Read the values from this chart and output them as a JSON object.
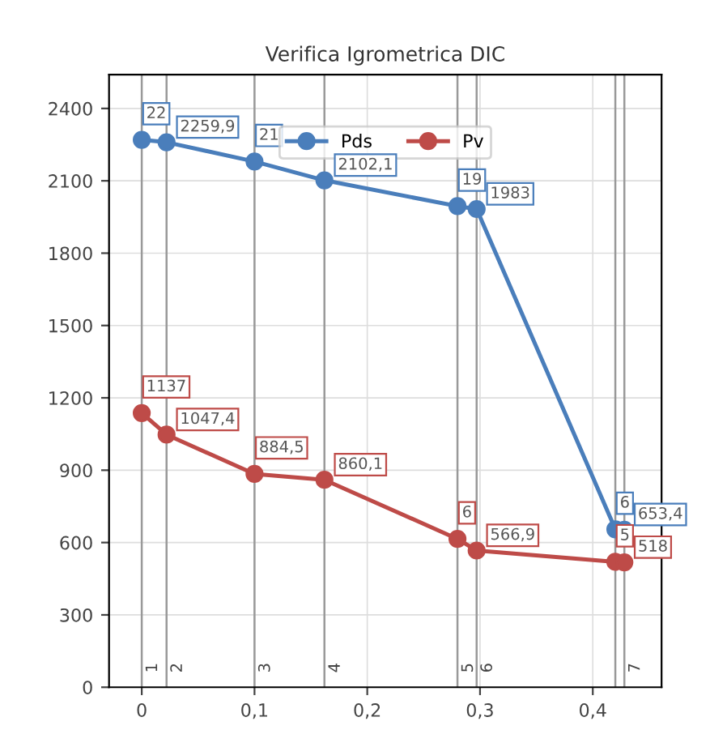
{
  "chart_data": {
    "type": "line",
    "title": "Verifica Igrometrica DIC",
    "x": [
      0,
      0.022,
      0.1,
      0.162,
      0.28,
      0.297,
      0.42,
      0.428
    ],
    "series": [
      {
        "name": "Pds",
        "color": "#4a7ebb",
        "values": [
          2270,
          2259.9,
          2180,
          2102.1,
          1995,
          1983,
          655,
          653.4
        ],
        "value_labels": [
          null,
          "2259,9",
          null,
          "2102,1",
          null,
          "1983",
          null,
          "653,4"
        ]
      },
      {
        "name": "Pv",
        "color": "#be4b48",
        "values": [
          1137,
          1047.4,
          884.5,
          860.1,
          615,
          566.9,
          520,
          518
        ],
        "value_labels": [
          "1137",
          "1047,4",
          "884,5",
          "860,1",
          null,
          "566,9",
          null,
          "518"
        ]
      }
    ],
    "annotations": [
      {
        "text": "22",
        "x": 0,
        "y": 2270
      },
      {
        "text": "21",
        "x": 0.1,
        "y": 2180
      },
      {
        "text": "19",
        "x": 0.28,
        "y": 1995
      },
      {
        "text": "6",
        "x": 0.42,
        "y": 655
      },
      {
        "text": "6",
        "x": 0.28,
        "y": 615
      },
      {
        "text": "5",
        "x": 0.42,
        "y": 520
      },
      {
        "text": "1",
        "x": 0,
        "y": 0
      },
      {
        "text": "2",
        "x": 0.022,
        "y": 0
      },
      {
        "text": "3",
        "x": 0.1,
        "y": 0
      },
      {
        "text": "4",
        "x": 0.162,
        "y": 0
      },
      {
        "text": "5",
        "x": 0.28,
        "y": 0
      },
      {
        "text": "6",
        "x": 0.297,
        "y": 0
      },
      {
        "text": "7",
        "x": 0.428,
        "y": 0
      }
    ],
    "xlim": [
      -0.029,
      0.461
    ],
    "ylim": [
      0,
      2540
    ],
    "xticks": [
      0,
      {
        "value": 0.1,
        "label": "0,1"
      },
      {
        "value": 0.2,
        "label": "0,2"
      },
      {
        "value": 0.3,
        "label": "0,3"
      },
      {
        "value": 0.4,
        "label": "0,4"
      }
    ],
    "yticks": [
      0,
      300,
      600,
      900,
      1200,
      1500,
      1800,
      2100,
      2400
    ],
    "ref_lines": [
      {
        "axis": "x",
        "value": 0
      },
      {
        "axis": "x",
        "value": 0.022
      },
      {
        "axis": "x",
        "value": 0.1
      },
      {
        "axis": "x",
        "value": 0.162
      },
      {
        "axis": "x",
        "value": 0.28
      },
      {
        "axis": "x",
        "value": 0.297
      },
      {
        "axis": "x",
        "value": 0.42
      },
      {
        "axis": "x",
        "value": 0.428
      }
    ],
    "grid": true,
    "legend": "top",
    "marker": "circle",
    "line_style": "solid"
  }
}
